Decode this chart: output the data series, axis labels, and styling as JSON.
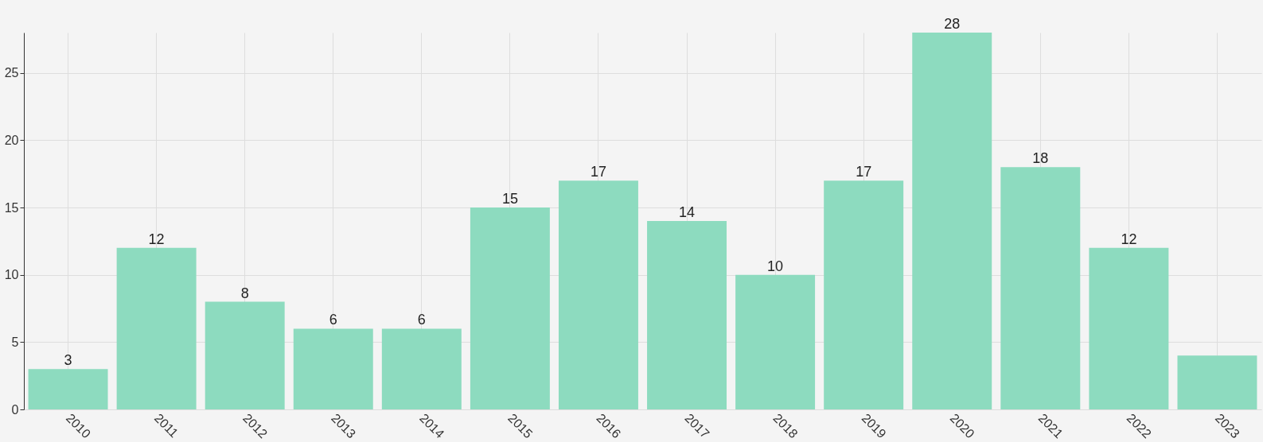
{
  "chart_data": {
    "type": "bar",
    "categories": [
      "2010",
      "2011",
      "2012",
      "2013",
      "2014",
      "2015",
      "2016",
      "2017",
      "2018",
      "2019",
      "2020",
      "2021",
      "2022",
      "2023"
    ],
    "values": [
      3,
      12,
      8,
      6,
      6,
      15,
      17,
      14,
      10,
      17,
      28,
      18,
      12,
      4
    ],
    "value_labels": [
      "3",
      "12",
      "8",
      "6",
      "6",
      "15",
      "17",
      "14",
      "10",
      "17",
      "28",
      "18",
      "12",
      null
    ],
    "color": "#8ddbbf",
    "ylim": [
      0,
      28
    ],
    "yticks": [
      0,
      5,
      10,
      15,
      20,
      25
    ],
    "grid": true
  }
}
